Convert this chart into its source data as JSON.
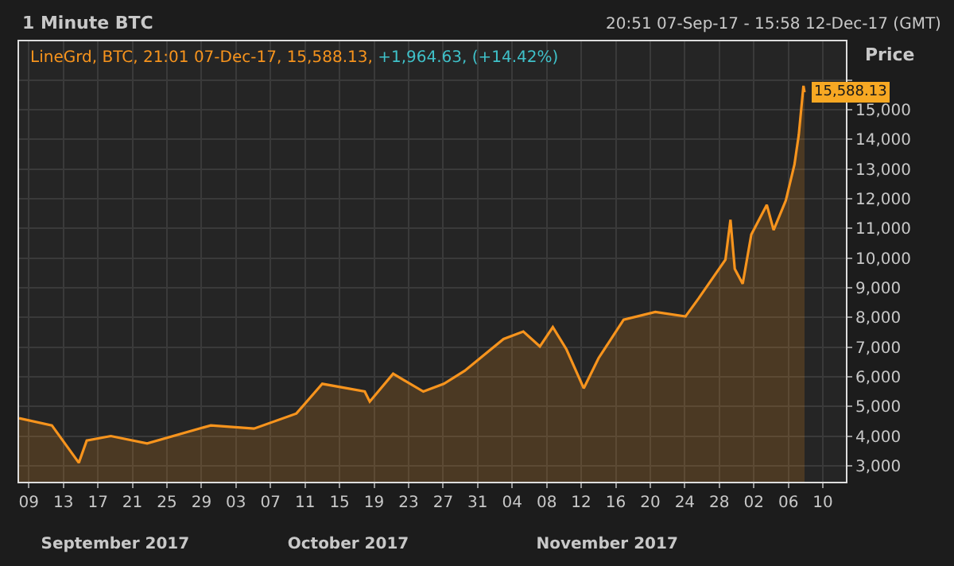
{
  "chart_data": {
    "type": "area",
    "title": "1 Minute BTC",
    "subtitle": "20:51 07-Sep-17 - 15:58 12-Dec-17 (GMT)",
    "ylabel": "Price",
    "annotations": [
      "LineGrd, BTC, 21:01 07-Dec-17, 15,588.13,",
      "+1,964.63, (+14.42%)",
      "15,588.13"
    ],
    "x": [
      "2017-09-07T20:51",
      "2017-09-11T16:00",
      "2017-09-14T19:00",
      "2017-09-15T17:00",
      "2017-09-18T12:00",
      "2017-09-22T17:00",
      "2017-09-30T02:00",
      "2017-10-05T02:00",
      "2017-10-10T00:00",
      "2017-10-13T00:00",
      "2017-10-17T22:00",
      "2017-10-18T12:00",
      "2017-10-21T05:00",
      "2017-10-24T17:00",
      "2017-10-27T02:00",
      "2017-10-29T12:00",
      "2017-11-03T00:00",
      "2017-11-05T07:00",
      "2017-11-07T05:00",
      "2017-11-08T17:00",
      "2017-11-10T07:00",
      "2017-11-12T07:00",
      "2017-11-14T00:00",
      "2017-11-16T22:00",
      "2017-11-20T14:00",
      "2017-11-24T02:00",
      "2017-11-25T14:00",
      "2017-11-28T17:00",
      "2017-11-29T07:00",
      "2017-11-29T19:00",
      "2017-11-30T17:00",
      "2017-12-01T17:00",
      "2017-12-03T12:00",
      "2017-12-04T07:00",
      "2017-12-05T17:00",
      "2017-12-06T17:00",
      "2017-12-07T05:00",
      "2017-12-07T18:00",
      "2017-12-07T21:01"
    ],
    "series": [
      {
        "color": "#f7941d",
        "values": [
          4600,
          4360,
          3100,
          3850,
          4000,
          3750,
          4360,
          4250,
          4760,
          5760,
          5500,
          5160,
          6100,
          5500,
          5760,
          6200,
          7270,
          7520,
          7020,
          7670,
          6920,
          5610,
          6620,
          7920,
          8180,
          8030,
          8630,
          9940,
          11290,
          9630,
          9130,
          10790,
          11790,
          10940,
          11940,
          13150,
          14150,
          15800,
          15588.13
        ]
      }
    ],
    "xlim": [
      "2017-09-07T20:51",
      "2017-12-12T15:58"
    ],
    "xticks": [
      {
        "value": "2017-09-09",
        "label": "09"
      },
      {
        "value": "2017-09-13",
        "label": "13"
      },
      {
        "value": "2017-09-17",
        "label": "17"
      },
      {
        "value": "2017-09-21",
        "label": "21"
      },
      {
        "value": "2017-09-25",
        "label": "25"
      },
      {
        "value": "2017-09-29",
        "label": "29"
      },
      {
        "value": "2017-10-03",
        "label": "03"
      },
      {
        "value": "2017-10-07",
        "label": "07"
      },
      {
        "value": "2017-10-11",
        "label": "11"
      },
      {
        "value": "2017-10-15",
        "label": "15"
      },
      {
        "value": "2017-10-19",
        "label": "19"
      },
      {
        "value": "2017-10-23",
        "label": "23"
      },
      {
        "value": "2017-10-27",
        "label": "27"
      },
      {
        "value": "2017-10-31",
        "label": "31"
      },
      {
        "value": "2017-11-04",
        "label": "04"
      },
      {
        "value": "2017-11-08",
        "label": "08"
      },
      {
        "value": "2017-11-12",
        "label": "12"
      },
      {
        "value": "2017-11-16",
        "label": "16"
      },
      {
        "value": "2017-11-20",
        "label": "20"
      },
      {
        "value": "2017-11-24",
        "label": "24"
      },
      {
        "value": "2017-11-28",
        "label": "28"
      },
      {
        "value": "2017-12-02",
        "label": "02"
      },
      {
        "value": "2017-12-06",
        "label": "06"
      },
      {
        "value": "2017-12-10",
        "label": "10"
      }
    ],
    "x2lim": [
      "2017-09-07T20:51",
      "2017-12-12T15:58"
    ],
    "x2ticks": [
      {
        "value": "2017-09-19",
        "label": "September 2017"
      },
      {
        "value": "2017-10-16",
        "label": "October 2017"
      },
      {
        "value": "2017-11-15",
        "label": "November 2017"
      }
    ],
    "ylim": [
      2450,
      17300
    ],
    "yticks": [
      {
        "value": 3000,
        "label": "3,000"
      },
      {
        "value": 4000,
        "label": "4,000"
      },
      {
        "value": 5000,
        "label": "5,000"
      },
      {
        "value": 6000,
        "label": "6,000"
      },
      {
        "value": 7000,
        "label": "7,000"
      },
      {
        "value": 8000,
        "label": "8,000"
      },
      {
        "value": 9000,
        "label": "9,000"
      },
      {
        "value": 10000,
        "label": "10,000"
      },
      {
        "value": 11000,
        "label": "11,000"
      },
      {
        "value": 12000,
        "label": "12,000"
      },
      {
        "value": 13000,
        "label": "13,000"
      },
      {
        "value": 14000,
        "label": "14,000"
      },
      {
        "value": 15000,
        "label": "15,000"
      },
      {
        "value": 16000,
        "label": null
      }
    ],
    "grid": true
  }
}
